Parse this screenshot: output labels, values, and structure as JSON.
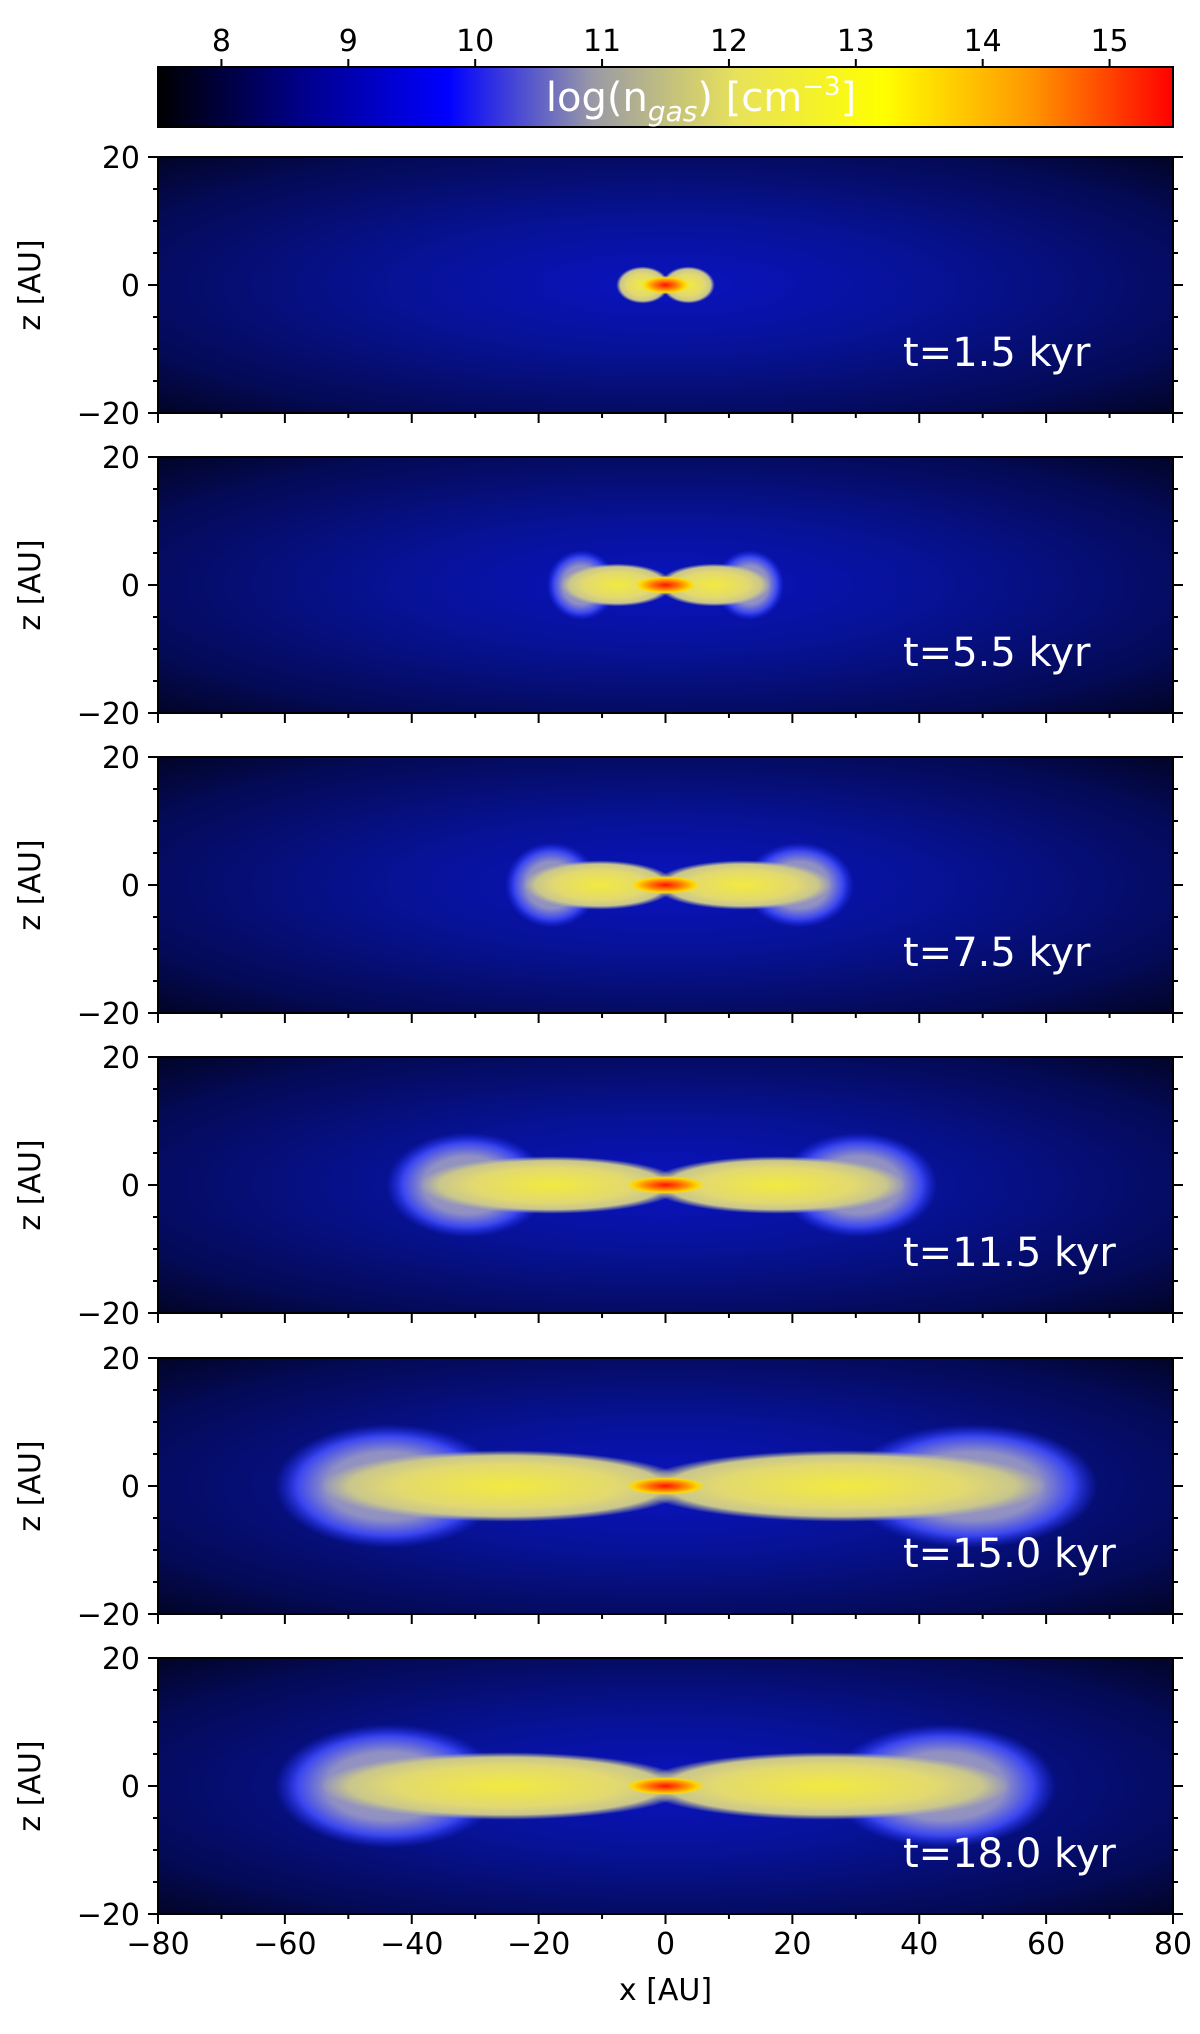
{
  "chart_data": {
    "type": "heatmap",
    "title": "",
    "colorbar": {
      "position": "top",
      "range": [
        7.5,
        15.5
      ],
      "ticks": [
        8,
        9,
        10,
        11,
        12,
        13,
        14,
        15
      ],
      "label": {
        "pre": "log(n",
        "sub": "gas",
        "mid": ") [cm",
        "sup": "−3",
        "post": "]"
      },
      "colors": [
        "#000000",
        "#00008b",
        "#0000ff",
        "#9a9aa6",
        "#e8e25a",
        "#ffff00",
        "#ff9900",
        "#ff0000"
      ]
    },
    "xlabel": "x [AU]",
    "ylabel": "z [AU]",
    "xlim": [
      -80,
      80
    ],
    "ylim": [
      -20,
      20
    ],
    "xticks": [
      -80,
      -60,
      -40,
      -20,
      0,
      20,
      40,
      60,
      80
    ],
    "xtick_labels": [
      "−80",
      "−60",
      "−40",
      "−20",
      "0",
      "20",
      "40",
      "60",
      "80"
    ],
    "yticks": [
      -20,
      0,
      20
    ],
    "ytick_labels": [
      "−20",
      "0",
      "20"
    ],
    "panels": [
      {
        "time_label": "t=1.5 kyr",
        "disk_extent_au": [
          -8,
          8
        ]
      },
      {
        "time_label": "t=5.5 kyr",
        "disk_extent_au": [
          -17,
          17
        ]
      },
      {
        "time_label": "t=7.5 kyr",
        "disk_extent_au": [
          -23,
          27
        ]
      },
      {
        "time_label": "t=11.5 kyr",
        "disk_extent_au": [
          -40,
          39
        ]
      },
      {
        "time_label": "t=15.0 kyr",
        "disk_extent_au": [
          -56,
          62
        ]
      },
      {
        "time_label": "t=18.0 kyr",
        "disk_extent_au": [
          -56,
          56
        ]
      }
    ]
  }
}
